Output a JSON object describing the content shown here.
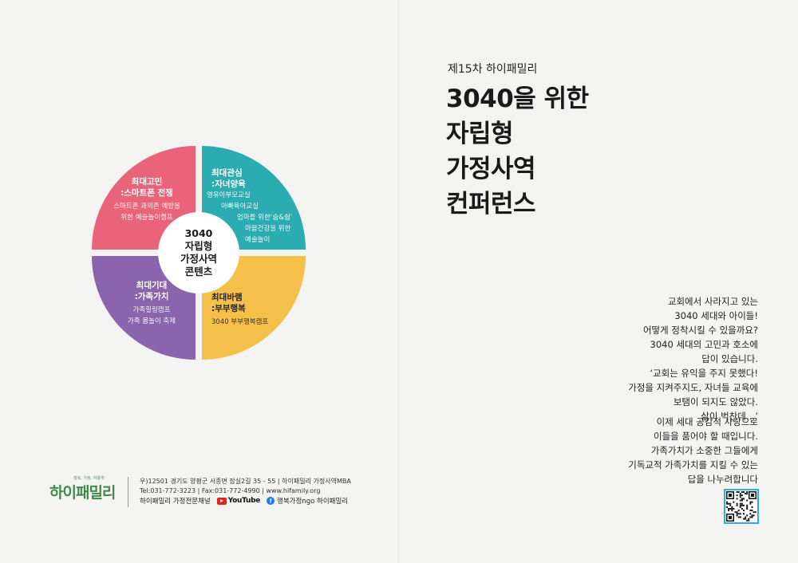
{
  "subtitle": "제15차 하이패밀리",
  "title_lines": [
    "3040을 위한",
    "자립형",
    "가정사역",
    "컨퍼런스"
  ],
  "diagram": {
    "center": [
      "3040",
      "자립형",
      "가정사역",
      "콘텐츠"
    ],
    "quadrants": {
      "top_left": {
        "color": "#e9637a",
        "title": [
          "최대고민",
          ":스마트폰 전쟁"
        ],
        "items": [
          "스마트폰 과의존 예방을",
          "위한 예술놀이캠프"
        ]
      },
      "top_right": {
        "color": "#2aacb0",
        "title": [
          "최대관심",
          ":자녀양육"
        ],
        "items": [
          "영유아부모교실",
          "아빠육아교실",
          "엄마를 위한‘숨&쉼’",
          "마음건강을 위한",
          "예술놀이"
        ]
      },
      "bottom_left": {
        "color": "#8a64ad",
        "title": [
          "최대기대",
          ":가족가치"
        ],
        "items": [
          "가족힐링캠프",
          "가족 몸놀이 축제"
        ]
      },
      "bottom_right": {
        "color": "#f5c04a",
        "title": [
          "최대바램",
          ":부부행복"
        ],
        "items": [
          "3040 부부행복캠프"
        ]
      }
    }
  },
  "body": {
    "paragraph1": [
      "교회에서 사라지고 있는",
      "3040 세대와 아이들!",
      "어떻게 정착시킬 수 있을까요?",
      "3040 세대의 고민과 호소에",
      "답이 있습니다.",
      "‘교회는 유익을 주지 못했다!",
      "가정을 지켜주지도, 자녀들 교육에",
      "보탬이 되지도 않았다.",
      "삶이 벅찬데…’"
    ],
    "paragraph2": [
      "이제 세대 공감적 사랑으로",
      "이들을 품어야 할 때입니다.",
      "가족가치가 소중한 그들에게",
      "기독교적 가족가치를 지킬 수 있는",
      "답을 나누려합니다"
    ]
  },
  "footer": {
    "logo_tagline": "행복, 가정, 하얗게",
    "logo_text": "하이패밀리",
    "address_lines": [
      "우)12501 경기도 양평군 서종면 잠실2길 35 - 55  |  하이패밀리 가정사역MBA",
      "Tel:031-772-3223 | Fax:031-772-4990  |  www.hifamily.org"
    ],
    "channel_label": "하이패밀리 가정전문채널",
    "youtube_label": "YouTube",
    "facebook_label": "행복가정ngo 하이패밀리"
  }
}
